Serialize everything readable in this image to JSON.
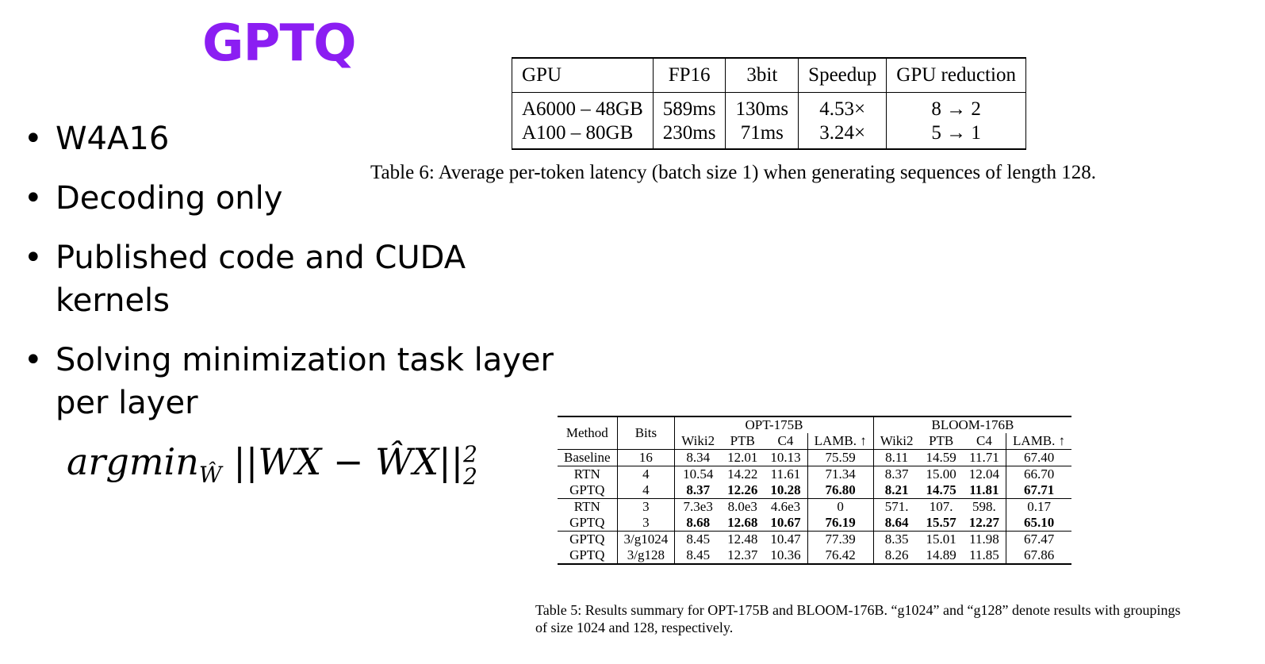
{
  "title": "GPTQ",
  "bullets": [
    "W4A16",
    "Decoding only",
    "Published code and CUDA kernels",
    "Solving minimization task layer per layer"
  ],
  "formula": {
    "op": "argmin",
    "sub": "Ŵ",
    "body": "||WX − ŴX||",
    "sup": "2",
    "sub2": "2"
  },
  "table6": {
    "headers": [
      "GPU",
      "FP16",
      "3bit",
      "Speedup",
      "GPU reduction"
    ],
    "rows": [
      [
        "A6000 – 48GB",
        "589ms",
        "130ms",
        "4.53×",
        "8 → 2"
      ],
      [
        "A100 – 80GB",
        "230ms",
        "71ms",
        "3.24×",
        "5 → 1"
      ]
    ],
    "caption": "Table 6: Average per-token latency (batch size 1) when generating sequences of length 128."
  },
  "table5": {
    "col_method": "Method",
    "col_bits": "Bits",
    "group1": "OPT-175B",
    "group2": "BLOOM-176B",
    "subheaders": [
      "Wiki2",
      "PTB",
      "C4",
      "LAMB. ↑",
      "Wiki2",
      "PTB",
      "C4",
      "LAMB. ↑"
    ],
    "rows": [
      {
        "method": "Baseline",
        "bits": "16",
        "vals": [
          "8.34",
          "12.01",
          "10.13",
          "75.59",
          "8.11",
          "14.59",
          "11.71",
          "67.40"
        ],
        "bold": false,
        "sep": true
      },
      {
        "method": "RTN",
        "bits": "4",
        "vals": [
          "10.54",
          "14.22",
          "11.61",
          "71.34",
          "8.37",
          "15.00",
          "12.04",
          "66.70"
        ],
        "bold": false,
        "sep": true
      },
      {
        "method": "GPTQ",
        "bits": "4",
        "vals": [
          "8.37",
          "12.26",
          "10.28",
          "76.80",
          "8.21",
          "14.75",
          "11.81",
          "67.71"
        ],
        "bold": true,
        "sep": false
      },
      {
        "method": "RTN",
        "bits": "3",
        "vals": [
          "7.3e3",
          "8.0e3",
          "4.6e3",
          "0",
          "571.",
          "107.",
          "598.",
          "0.17"
        ],
        "bold": false,
        "sep": true
      },
      {
        "method": "GPTQ",
        "bits": "3",
        "vals": [
          "8.68",
          "12.68",
          "10.67",
          "76.19",
          "8.64",
          "15.57",
          "12.27",
          "65.10"
        ],
        "bold": true,
        "sep": false
      },
      {
        "method": "GPTQ",
        "bits": "3/g1024",
        "vals": [
          "8.45",
          "12.48",
          "10.47",
          "77.39",
          "8.35",
          "15.01",
          "11.98",
          "67.47"
        ],
        "bold": false,
        "sep": true
      },
      {
        "method": "GPTQ",
        "bits": "3/g128",
        "vals": [
          "8.45",
          "12.37",
          "10.36",
          "76.42",
          "8.26",
          "14.89",
          "11.85",
          "67.86"
        ],
        "bold": false,
        "sep": false
      }
    ],
    "caption": "Table 5: Results summary for OPT-175B and BLOOM-176B. “g1024” and “g128” denote results with groupings of size 1024 and 128, respectively."
  }
}
